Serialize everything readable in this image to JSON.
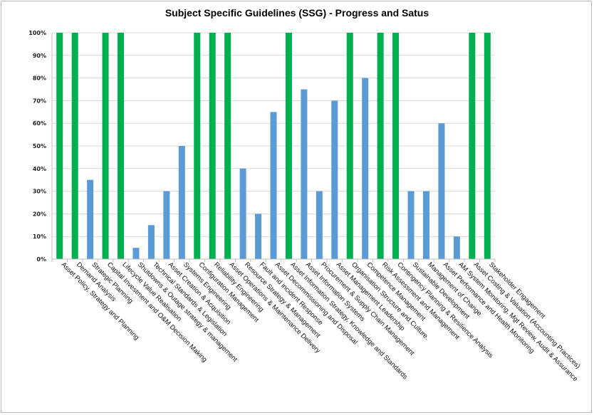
{
  "chart_data": {
    "type": "bar",
    "title": "Subject Specific Guidelines (SSG)  - Progress and Satus",
    "xlabel": "",
    "ylabel": "",
    "ylim": [
      0,
      100
    ],
    "y_ticks": [
      "0%",
      "10%",
      "20%",
      "30%",
      "40%",
      "50%",
      "60%",
      "70%",
      "80%",
      "90%",
      "100%"
    ],
    "grid": true,
    "colors": {
      "complete": "#00b050",
      "in_progress": "#5b9bd5"
    },
    "categories": [
      "Asset Policy, Strategy and Planning",
      "Demand Analysis",
      "Strategic Planning",
      "Capital Investment and O&M Decision Making",
      "Lifecycle Value Realisation",
      "Shutdowns & Outage strategy & management",
      "Technical Standards & Legislation",
      "Asset Creation & Acquisition",
      "Systems Engineering",
      "Configuration Management",
      "Reliability Engineering",
      "Asset Operations & Maintenance Delivery",
      "Resource Strategy & Management",
      "Fault and incident Response",
      "Asset Decommissioning and Disposal",
      "Asset Information Strategy, Knowledge and Standards",
      "Asset Information Systems",
      "Procurement & Supply Chain Management",
      "Asset Management Leadership",
      "Organisation Structure and Culture.",
      "Competence Management",
      "Risk Assessment and Management",
      "Contingency Planning & Resilience Analysis",
      "Sustainable Development",
      "Management of Change",
      "Asset Performance and Health Monitoring",
      "AM System Monitoring, Mgt Review, Audit & Assurance",
      "Asset Costing & Valuation (Accounting Practices)",
      "Stakeholder Engagement"
    ],
    "values": [
      100,
      100,
      35,
      100,
      100,
      5,
      15,
      30,
      50,
      100,
      100,
      100,
      40,
      20,
      65,
      100,
      75,
      30,
      70,
      100,
      80,
      100,
      100,
      30,
      30,
      60,
      10,
      100,
      100
    ],
    "bar_status": [
      "complete",
      "complete",
      "in_progress",
      "complete",
      "complete",
      "in_progress",
      "in_progress",
      "in_progress",
      "in_progress",
      "complete",
      "complete",
      "complete",
      "in_progress",
      "in_progress",
      "in_progress",
      "complete",
      "in_progress",
      "in_progress",
      "in_progress",
      "complete",
      "in_progress",
      "complete",
      "complete",
      "in_progress",
      "in_progress",
      "in_progress",
      "in_progress",
      "complete",
      "complete"
    ]
  }
}
